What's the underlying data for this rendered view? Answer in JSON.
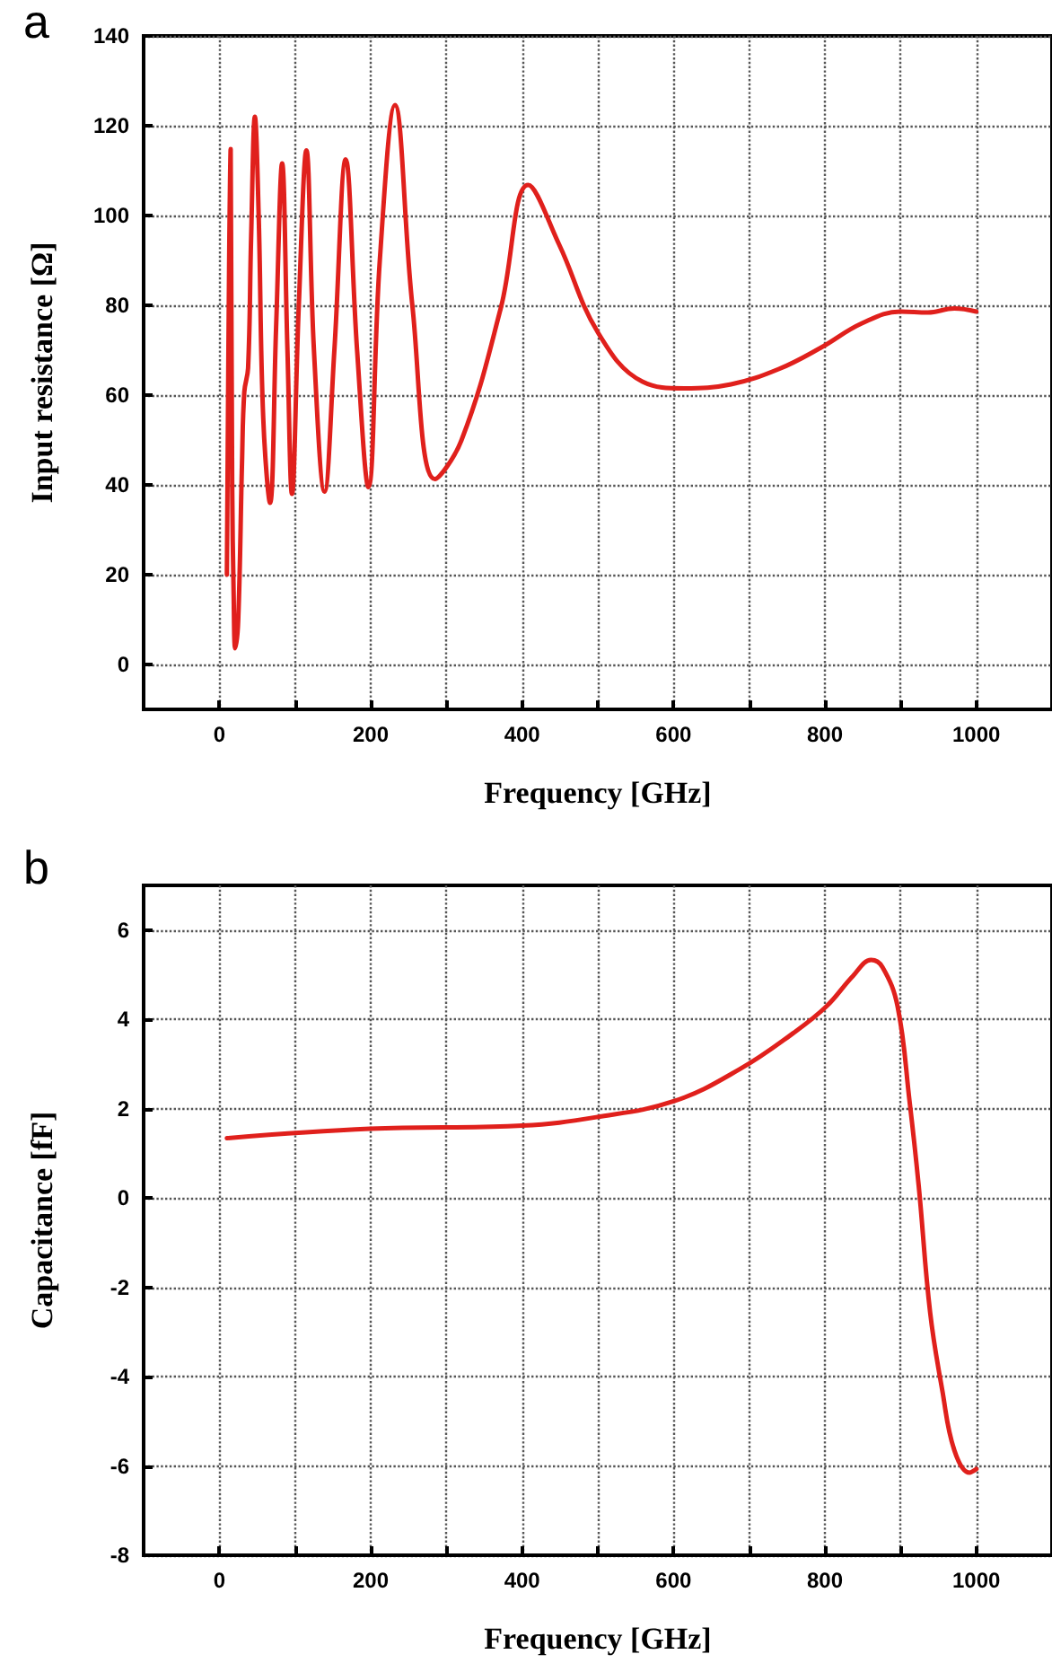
{
  "chart_data": [
    {
      "type": "line",
      "title": "a",
      "xlabel": "Frequency [GHz]",
      "ylabel": "Input resistance [Ω]",
      "xlim": [
        -100,
        1100
      ],
      "ylim": [
        -10,
        140
      ],
      "xticks": [
        0,
        {
          "value": 100,
          "label": null
        },
        200,
        {
          "value": 300,
          "label": null
        },
        400,
        {
          "value": 500,
          "label": null
        },
        600,
        {
          "value": 700,
          "label": null
        },
        800,
        {
          "value": 900,
          "label": null
        },
        1000
      ],
      "yticks": [
        0,
        20,
        40,
        60,
        80,
        100,
        120,
        140
      ],
      "grid": true,
      "marker": "none",
      "line_style": "solid",
      "series": [
        {
          "color": "#e0201c",
          "x": [
            10,
            13,
            15,
            17,
            19,
            21,
            25,
            30,
            33,
            38,
            42,
            47,
            52,
            58,
            67,
            75,
            83,
            90,
            96,
            105,
            115,
            125,
            139,
            152,
            167,
            182,
            197,
            212,
            232,
            255,
            285,
            320,
            372,
            408,
            449,
            500,
            559,
            614,
            676,
            739,
            794,
            849,
            900,
            936,
            971,
            1000
          ],
          "values": [
            20,
            90,
            114.8,
            40,
            15,
            3.6,
            10,
            45,
            60.7,
            66,
            95,
            122,
            100,
            55,
            36,
            75,
            111.6,
            70,
            38,
            80,
            114.5,
            70,
            38.5,
            70,
            112.5,
            70,
            39.5,
            90,
            124.6,
            80,
            41.3,
            50,
            79.5,
            106.8,
            93.5,
            74,
            63,
            61.5,
            62.4,
            65.8,
            70.5,
            76,
            78.6,
            78.4,
            79.3,
            78.6
          ]
        }
      ]
    },
    {
      "type": "line",
      "title": "b",
      "xlabel": "Frequency [GHz]",
      "ylabel": "Capacitance [fF]",
      "xlim": [
        -100,
        1100
      ],
      "ylim": [
        -8,
        7
      ],
      "xticks": [
        0,
        {
          "value": 100,
          "label": null
        },
        200,
        {
          "value": 300,
          "label": null
        },
        400,
        {
          "value": 500,
          "label": null
        },
        600,
        {
          "value": 700,
          "label": null
        },
        800,
        {
          "value": 900,
          "label": null
        },
        1000
      ],
      "yticks": [
        -8,
        -6,
        -4,
        -2,
        0,
        2,
        4,
        6
      ],
      "grid": true,
      "marker": "none",
      "line_style": "solid",
      "series": [
        {
          "color": "#e0201c",
          "x": [
            10,
            199,
            400,
            498,
            601,
            687,
            758,
            802,
            837,
            861,
            876,
            896,
            912,
            924,
            939,
            955,
            971,
            991,
            1000
          ],
          "values": [
            1.34,
            1.55,
            1.62,
            1.81,
            2.17,
            2.88,
            3.69,
            4.29,
            4.97,
            5.33,
            5.17,
            4.29,
            2.14,
            0.26,
            -2.56,
            -4.3,
            -5.65,
            -6.15,
            -6.07
          ]
        }
      ]
    }
  ]
}
